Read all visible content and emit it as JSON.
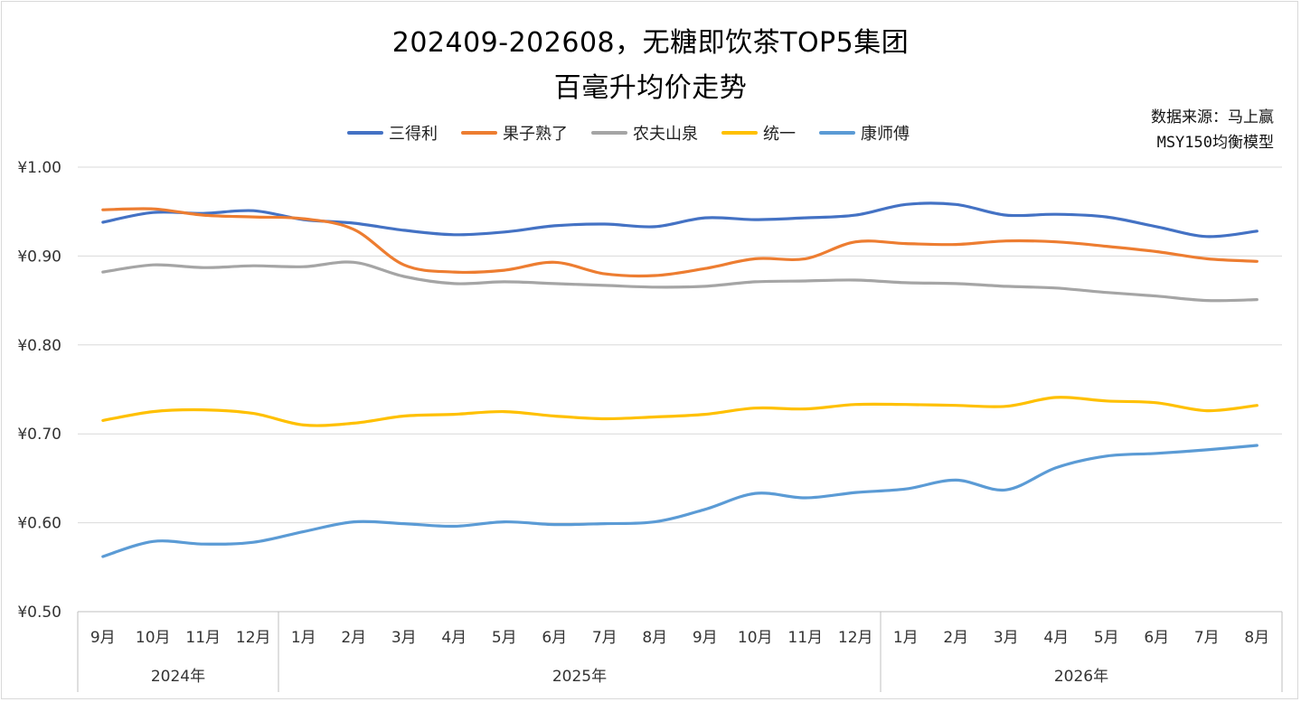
{
  "chart_data": {
    "type": "line",
    "title_line1": "202409-202608，无糖即饮茶TOP5集团",
    "title_line2": "百毫升均价走势",
    "source_line1": "数据来源：马上赢",
    "source_line2": "MSY150均衡模型",
    "y_ticks": [
      "¥1.00",
      "¥0.90",
      "¥0.80",
      "¥0.70",
      "¥0.60",
      "¥0.50"
    ],
    "ylim": [
      0.5,
      1.0
    ],
    "categories": [
      "9月",
      "10月",
      "11月",
      "12月",
      "1月",
      "2月",
      "3月",
      "4月",
      "5月",
      "6月",
      "7月",
      "8月",
      "9月",
      "10月",
      "11月",
      "12月",
      "1月",
      "2月",
      "3月",
      "4月",
      "5月",
      "6月",
      "7月",
      "8月"
    ],
    "year_groups": [
      {
        "label": "2024年",
        "count": 4
      },
      {
        "label": "2025年",
        "count": 12
      },
      {
        "label": "2026年",
        "count": 8
      }
    ],
    "grid": true,
    "legend_position": "top",
    "series": [
      {
        "name": "三得利",
        "color": "#4472C4",
        "values": [
          0.938,
          0.949,
          0.948,
          0.951,
          0.941,
          0.937,
          0.929,
          0.924,
          0.927,
          0.934,
          0.936,
          0.933,
          0.943,
          0.941,
          0.943,
          0.946,
          0.958,
          0.958,
          0.946,
          0.947,
          0.944,
          0.933,
          0.922,
          0.928
        ]
      },
      {
        "name": "果子熟了",
        "color": "#ED7D31",
        "values": [
          0.952,
          0.953,
          0.946,
          0.944,
          0.942,
          0.93,
          0.89,
          0.882,
          0.884,
          0.893,
          0.88,
          0.878,
          0.886,
          0.897,
          0.897,
          0.916,
          0.914,
          0.913,
          0.917,
          0.916,
          0.911,
          0.905,
          0.897,
          0.894
        ]
      },
      {
        "name": "农夫山泉",
        "color": "#A5A5A5",
        "values": [
          0.882,
          0.89,
          0.887,
          0.889,
          0.888,
          0.893,
          0.877,
          0.869,
          0.871,
          0.869,
          0.867,
          0.865,
          0.866,
          0.871,
          0.872,
          0.873,
          0.87,
          0.869,
          0.866,
          0.864,
          0.859,
          0.855,
          0.85,
          0.851
        ]
      },
      {
        "name": "统一",
        "color": "#FFC000",
        "values": [
          0.715,
          0.725,
          0.727,
          0.723,
          0.71,
          0.712,
          0.72,
          0.722,
          0.725,
          0.72,
          0.717,
          0.719,
          0.722,
          0.729,
          0.728,
          0.733,
          0.733,
          0.732,
          0.731,
          0.741,
          0.737,
          0.735,
          0.726,
          0.732
        ]
      },
      {
        "name": "康师傅",
        "color": "#5B9BD5",
        "values": [
          0.562,
          0.579,
          0.576,
          0.578,
          0.59,
          0.601,
          0.599,
          0.596,
          0.601,
          0.598,
          0.599,
          0.601,
          0.615,
          0.633,
          0.628,
          0.634,
          0.638,
          0.648,
          0.637,
          0.662,
          0.675,
          0.678,
          0.682,
          0.687
        ]
      }
    ]
  }
}
